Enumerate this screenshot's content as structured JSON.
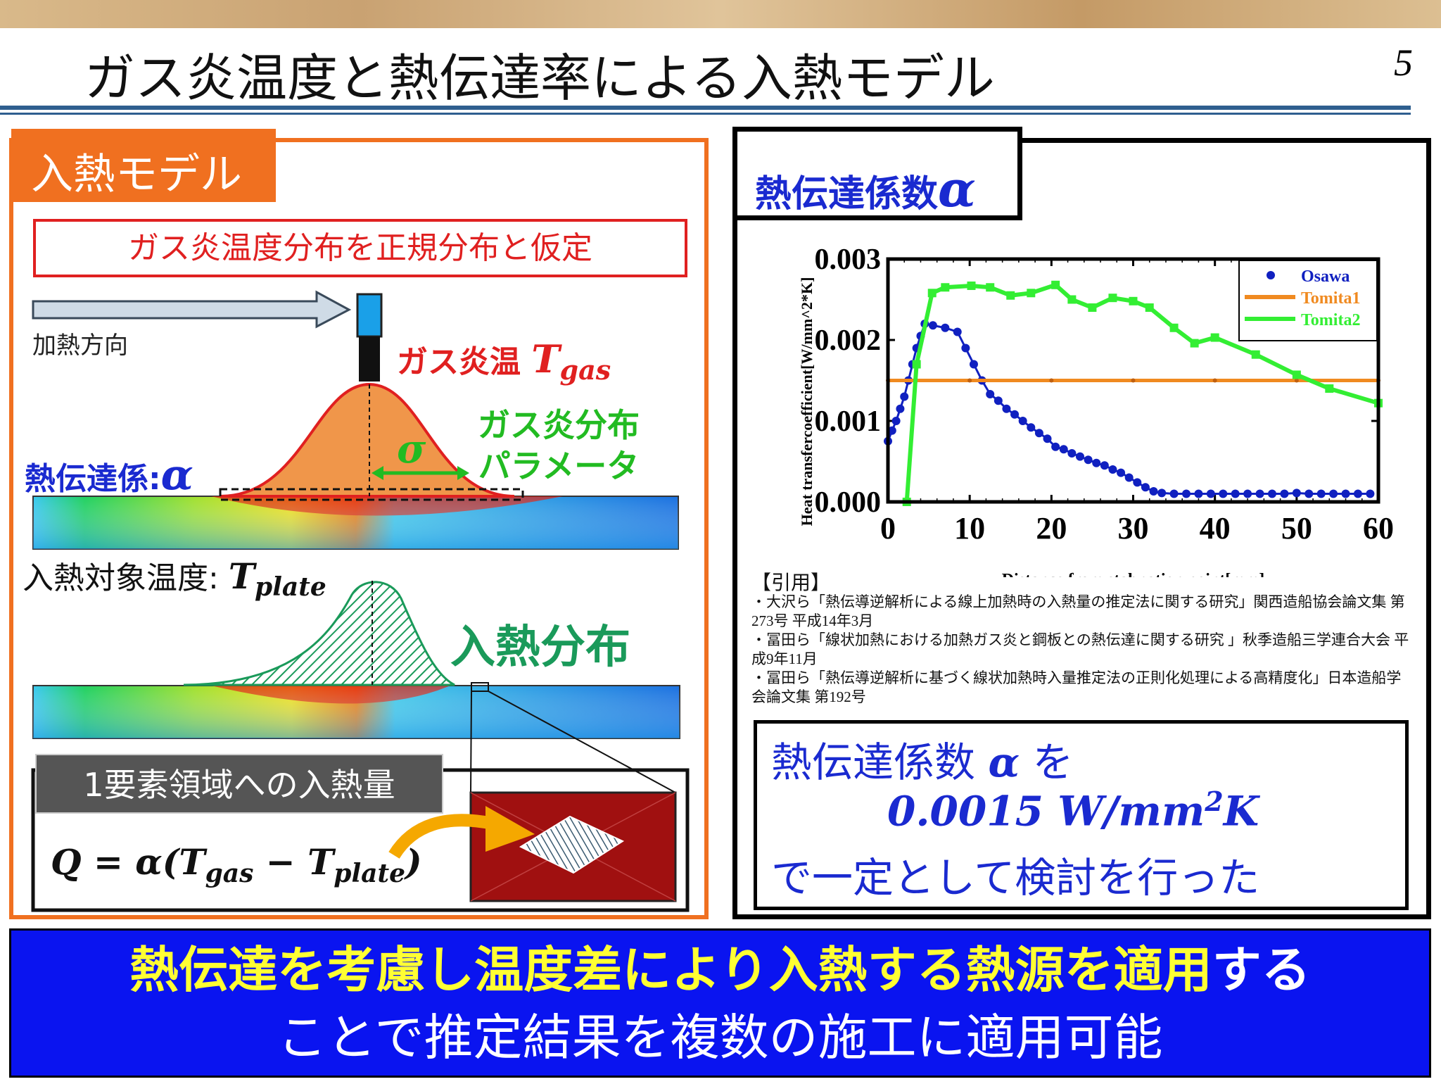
{
  "slide": {
    "title": "ガス炎温度と熱伝達率による入熱モデル",
    "page_number": "5"
  },
  "left": {
    "tab_label": "入熱モデル",
    "assumption": "ガス炎温度分布を正規分布と仮定",
    "heating_direction": "加熱方向",
    "gas_temp_label": "ガス炎温 ",
    "gas_temp_symbol": "T",
    "gas_temp_sub": "gas",
    "dist_param_line1": "ガス炎分布",
    "dist_param_line2": "パラメータ",
    "sigma": "σ",
    "htc_label": "熱伝達係:",
    "htc_symbol": "α",
    "plate_temp_label": "入熱対象温度: ",
    "plate_temp_symbol": "T",
    "plate_temp_sub": "plate",
    "heat_dist_label": "入熱分布",
    "element_tab": "1要素領域への入熱量",
    "formula": {
      "lhs": "Q = α(T",
      "sub1": "gas",
      "mid": " − T",
      "sub2": "plate",
      "end": ")"
    }
  },
  "right": {
    "tab_label": "熱伝達係数",
    "tab_symbol": "α",
    "citation_header": "【引用】",
    "citations": [
      "・大沢ら「熱伝導逆解析による線上加熱時の入熱量の推定法に関する研究」関西造船協会論文集 第273号 平成14年3月",
      "・冨田ら「線状加熱における加熱ガス炎と鋼板との熱伝達に関する研究 」秋季造船三学連合大会 平成9年11月",
      "・冨田ら「熱伝導逆解析に基づく線状加熱時入量推定法の正則化処理による高精度化」日本造船学会論文集 第192号"
    ],
    "conclusion": {
      "line1a": "熱伝達係数 ",
      "line1sym": "α",
      "line1b": " を",
      "line2": "0.0015 W/mm",
      "line2sup": "2",
      "line2end": "K",
      "line3": "で一定として検討を行った"
    }
  },
  "banner": {
    "line1_highlight": "熱伝達を考慮し温度差により入熱する熱源を適用",
    "line1_rest": "する",
    "line2": "ことで推定結果を複数の施工に適用可能"
  },
  "colors": {
    "orange": "#f07020",
    "blue": "#1a2ad0",
    "green": "#22bb22",
    "banner": "#0a14f0",
    "yellow": "#ffff33"
  },
  "chart_data": {
    "type": "line",
    "xlabel": "Distance from stabnation point[mm]",
    "ylabel": "Heat transfercoefficient[W/mm^2*K]",
    "xlim": [
      0,
      60
    ],
    "ylim": [
      0,
      0.003
    ],
    "xticks": [
      "0",
      "10",
      "20",
      "30",
      "40",
      "50",
      "60"
    ],
    "yticks": [
      "0.000",
      "0.001",
      "0.002",
      "0.003"
    ],
    "legend": "top-right",
    "series": [
      {
        "name": "Osawa",
        "color": "#1020c0",
        "marker": "circle",
        "x": [
          0,
          0.5,
          1,
          1.5,
          2,
          2.5,
          3,
          3.5,
          4,
          4.5,
          5.5,
          7,
          8.5,
          9.5,
          10.5,
          11.5,
          12.5,
          13.5,
          14.5,
          15.5,
          16.5,
          17.5,
          18.5,
          19.5,
          20.5,
          21.5,
          22.5,
          23.5,
          24.5,
          25.5,
          26.5,
          27.5,
          28.5,
          29.5,
          30.5,
          31.5,
          32.5,
          33.5,
          35,
          36.5,
          38,
          39.5,
          41,
          42.5,
          44,
          45.5,
          47,
          48.5,
          50,
          51.5,
          53,
          54.5,
          56,
          57.5,
          59
        ],
        "y": [
          0.00075,
          0.00088,
          0.001,
          0.00115,
          0.0013,
          0.0015,
          0.0017,
          0.0019,
          0.00205,
          0.0022,
          0.00218,
          0.00215,
          0.0021,
          0.0019,
          0.0017,
          0.0015,
          0.00133,
          0.00125,
          0.00115,
          0.00108,
          0.001,
          0.00092,
          0.00085,
          0.00078,
          0.00068,
          0.00065,
          0.0006,
          0.00056,
          0.00052,
          0.00048,
          0.00045,
          0.0004,
          0.00036,
          0.0003,
          0.00024,
          0.00018,
          0.00013,
          0.00011,
          0.0001,
          0.0001,
          0.0001,
          0.0001,
          0.0001,
          0.0001,
          0.0001,
          0.0001,
          0.0001,
          0.0001,
          0.00011,
          0.0001,
          0.0001,
          0.0001,
          0.0001,
          0.0001,
          0.0001
        ]
      },
      {
        "name": "Tomita1",
        "color": "#f08a20",
        "marker": "plus",
        "x": [
          0,
          10,
          20,
          30,
          40,
          50,
          60
        ],
        "y": [
          0.0015,
          0.0015,
          0.0015,
          0.0015,
          0.0015,
          0.0015,
          0.0015
        ]
      },
      {
        "name": "Tomita2",
        "color": "#33ee33",
        "marker": "square",
        "x": [
          2.3,
          3.5,
          5.4,
          7,
          10.2,
          12.5,
          15,
          17.5,
          20.5,
          22.5,
          25,
          27.5,
          30,
          32,
          35,
          37.5,
          40,
          45,
          50,
          54,
          60
        ],
        "y": [
          0,
          0.0017,
          0.00258,
          0.00265,
          0.00267,
          0.00265,
          0.00255,
          0.00258,
          0.00268,
          0.0025,
          0.0024,
          0.00252,
          0.00248,
          0.0024,
          0.00215,
          0.00196,
          0.00203,
          0.00182,
          0.00157,
          0.0014,
          0.00122
        ]
      }
    ]
  }
}
